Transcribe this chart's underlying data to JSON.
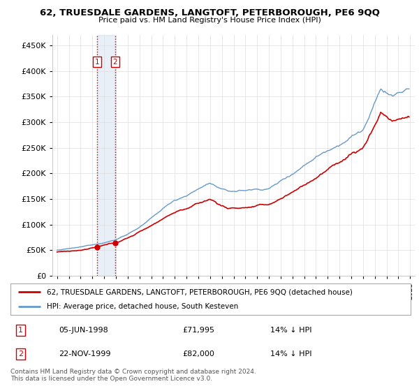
{
  "title": "62, TRUESDALE GARDENS, LANGTOFT, PETERBOROUGH, PE6 9QQ",
  "subtitle": "Price paid vs. HM Land Registry's House Price Index (HPI)",
  "legend_property": "62, TRUESDALE GARDENS, LANGTOFT, PETERBOROUGH, PE6 9QQ (detached house)",
  "legend_hpi": "HPI: Average price, detached house, South Kesteven",
  "transaction1_date": "05-JUN-1998",
  "transaction1_price": "£71,995",
  "transaction1_hpi": "14% ↓ HPI",
  "transaction2_date": "22-NOV-1999",
  "transaction2_price": "£82,000",
  "transaction2_hpi": "14% ↓ HPI",
  "footer": "Contains HM Land Registry data © Crown copyright and database right 2024.\nThis data is licensed under the Open Government Licence v3.0.",
  "property_color": "#cc0000",
  "hpi_color": "#6699cc",
  "marker1_year": 1998.43,
  "marker1_y": 71995,
  "marker2_year": 1999.9,
  "marker2_y": 82000,
  "ylim": [
    0,
    470000
  ],
  "yticks": [
    0,
    50000,
    100000,
    150000,
    200000,
    250000,
    300000,
    350000,
    400000,
    450000
  ],
  "xlim_min": 1994.6,
  "xlim_max": 2025.4,
  "background_color": "#ffffff"
}
